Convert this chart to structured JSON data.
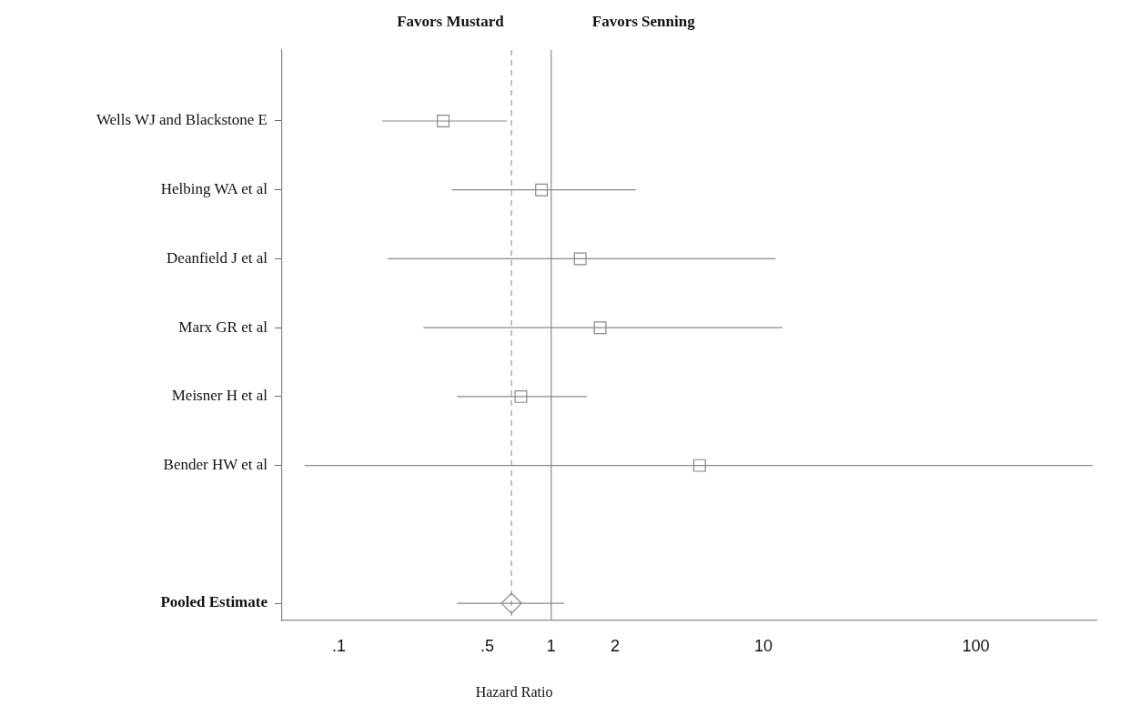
{
  "chart_data": {
    "type": "scatter",
    "legend": false,
    "orientation": "horizontal",
    "categories": [
      "Wells WJ and Blackstone E",
      "Helbing WA et al",
      "Deanfield J et al",
      "Marx GR et al",
      "Meisner H et al",
      "Bender HW et al",
      null,
      "Pooled Estimate"
    ],
    "xlabel": "Hazard Ratio",
    "log": "x",
    "xlim": [
      0.054,
      370
    ],
    "xticks": [
      {
        "value": 0.1,
        "label": ".1"
      },
      {
        "value": 0.5,
        "label": ".5"
      },
      1,
      2,
      10,
      100
    ],
    "series": [
      {
        "color": "#888888",
        "marker": "square",
        "values": [
          0.31,
          0.9,
          1.37,
          1.7,
          0.72,
          5.0,
          null,
          null
        ],
        "errors": [
          [
            0.16,
            0.62
          ],
          [
            0.34,
            2.5
          ],
          [
            0.17,
            11.4
          ],
          [
            0.25,
            12.3
          ],
          [
            0.36,
            1.47
          ],
          [
            0.069,
            355
          ],
          null,
          null
        ]
      },
      {
        "color": "#888888",
        "marker": "diamond",
        "values": [
          null,
          null,
          null,
          null,
          null,
          null,
          null,
          0.65
        ],
        "errors": [
          null,
          null,
          null,
          null,
          null,
          null,
          null,
          [
            0.36,
            1.15
          ]
        ]
      }
    ],
    "ref_lines": [
      {
        "axis": "x",
        "value": 1,
        "color": "#888888",
        "line_style": "solid"
      },
      {
        "axis": "x",
        "value": 0.65,
        "color": "#999999",
        "line_style": "dashed"
      }
    ],
    "annotations": [
      "Favors Mustard",
      "Favors Senning"
    ]
  }
}
